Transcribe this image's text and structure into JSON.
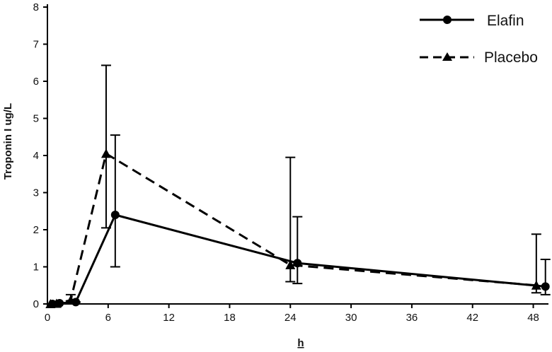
{
  "chart_data": {
    "type": "line",
    "title": "",
    "xlabel": "h",
    "ylabel": "Troponin I ug/L",
    "xlim": [
      0,
      49.5
    ],
    "ylim": [
      0,
      8
    ],
    "xticks": [
      0,
      6,
      12,
      18,
      24,
      30,
      36,
      42,
      48
    ],
    "yticks": [
      0,
      1,
      2,
      3,
      4,
      5,
      6,
      7,
      8
    ],
    "grid": false,
    "legend_position": "top-right",
    "series": [
      {
        "name": "Elafin",
        "style": "solid",
        "marker": "circle",
        "color": "#000000",
        "points": [
          {
            "x": 0.5,
            "y": 0.0,
            "lo": 0.0,
            "hi": 0.0
          },
          {
            "x": 1.2,
            "y": 0.02,
            "lo": 0.0,
            "hi": 0.02
          },
          {
            "x": 2.8,
            "y": 0.05,
            "lo": 0.0,
            "hi": 0.05
          },
          {
            "x": 6.7,
            "y": 2.4,
            "lo": 1.0,
            "hi": 4.55
          },
          {
            "x": 24.7,
            "y": 1.1,
            "lo": 0.55,
            "hi": 2.35
          },
          {
            "x": 49.2,
            "y": 0.47,
            "lo": 0.25,
            "hi": 1.2
          }
        ]
      },
      {
        "name": "Placebo",
        "style": "dashed",
        "marker": "triangle",
        "color": "#000000",
        "points": [
          {
            "x": 0.3,
            "y": 0.0,
            "lo": 0.0,
            "hi": 0.0
          },
          {
            "x": 0.9,
            "y": 0.01,
            "lo": 0.0,
            "hi": 0.01
          },
          {
            "x": 2.3,
            "y": 0.1,
            "lo": 0.0,
            "hi": 0.25
          },
          {
            "x": 5.8,
            "y": 4.05,
            "lo": 2.05,
            "hi": 6.43
          },
          {
            "x": 24.0,
            "y": 1.05,
            "lo": 0.6,
            "hi": 3.95
          },
          {
            "x": 48.3,
            "y": 0.5,
            "lo": 0.3,
            "hi": 1.88
          }
        ]
      }
    ]
  }
}
